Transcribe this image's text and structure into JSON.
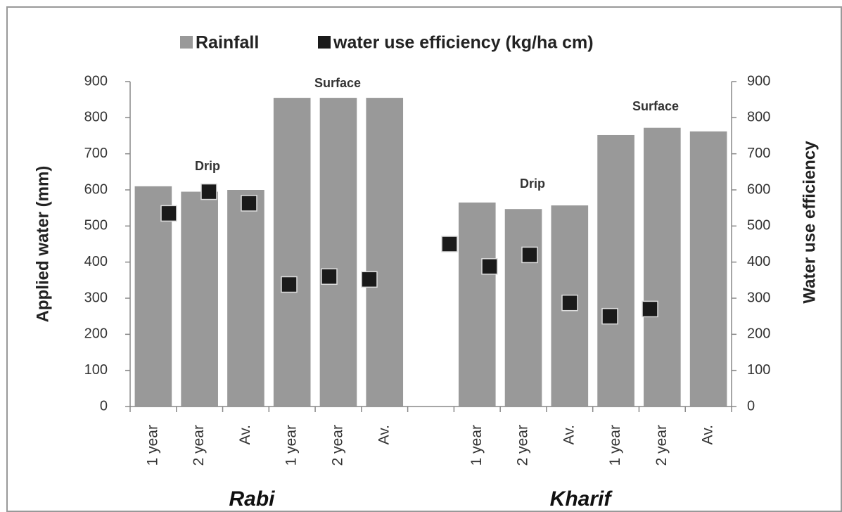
{
  "chart_data": {
    "type": "bar",
    "categories": [
      "1 year",
      "2 year",
      "Av.",
      "1 year",
      "2 year",
      "Av.",
      null,
      "1 year",
      "2 year",
      "Av.",
      "1 year",
      "2 year",
      "Av."
    ],
    "series": [
      {
        "name": "Rainfall",
        "color": "#999999",
        "values": [
          610,
          595,
          600,
          855,
          855,
          855,
          null,
          565,
          547,
          557,
          752,
          772,
          762
        ]
      },
      {
        "name": "water use efficiency (kg/ha cm)",
        "color": "#1a1a1a",
        "axis": "y2",
        "values": [
          535,
          595,
          563,
          338,
          360,
          352,
          null,
          450,
          388,
          420,
          287,
          250,
          270
        ]
      }
    ],
    "ylabel": "Applied water (mm)",
    "y2label": "Water use efficiency",
    "ylim": [
      0,
      900
    ],
    "yticks": [
      0,
      100,
      200,
      300,
      400,
      500,
      600,
      700,
      800,
      900
    ],
    "y2lim": [
      0,
      900
    ],
    "y2ticks": [
      0,
      100,
      200,
      300,
      400,
      500,
      600,
      700,
      800,
      900
    ],
    "annotations": [
      "Drip",
      "Surface",
      "Drip",
      "Surface"
    ],
    "groups": [
      "Rabi",
      "Kharif"
    ],
    "legend": "top"
  }
}
